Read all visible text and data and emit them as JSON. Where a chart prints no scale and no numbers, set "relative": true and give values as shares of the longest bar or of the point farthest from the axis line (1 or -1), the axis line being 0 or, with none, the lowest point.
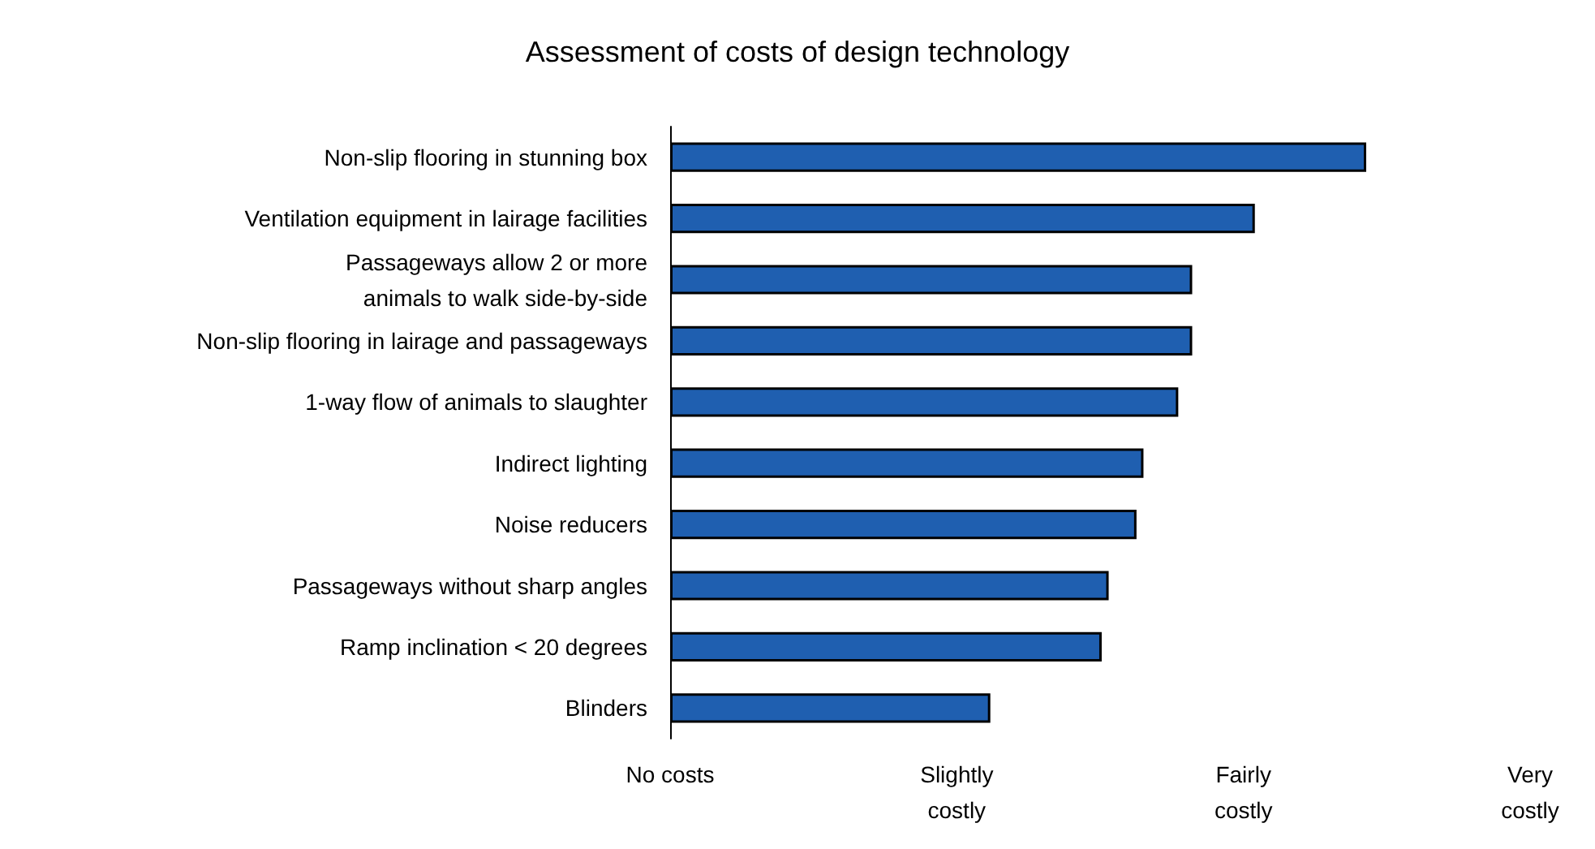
{
  "chart_data": {
    "type": "bar",
    "orientation": "horizontal",
    "relative": true,
    "title": "Assessment of costs of design technology",
    "categories": [
      "Non-slip flooring in stunning box",
      "Ventilation equipment in lairage facilities",
      "Passageways allow 2 or more\nanimals to walk side-by-side",
      "Non-slip flooring in lairage and passageways",
      "1-way flow of animals to slaughter",
      "Indirect lighting",
      "Noise reducers",
      "Passageways without sharp angles",
      "Ramp inclination < 20 degrees",
      "Blinders"
    ],
    "values": [
      1,
      0.84,
      0.75,
      0.75,
      0.73,
      0.68,
      0.67,
      0.63,
      0.62,
      0.46
    ],
    "color": "#1f5fb0",
    "annotations": [
      "No costs",
      "Slightly\ncostly",
      "Fairly\ncostly",
      "Very\ncostly"
    ]
  }
}
